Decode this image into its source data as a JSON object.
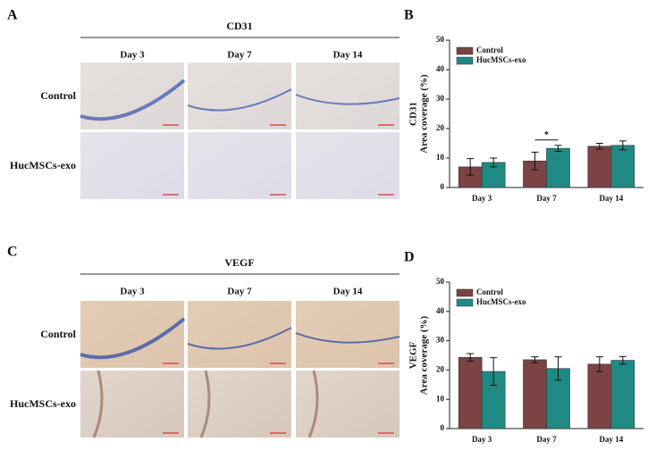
{
  "panels": [
    {
      "letter": "A",
      "title": "CD31",
      "columns": [
        "Day 3",
        "Day 7",
        "Day 14"
      ],
      "rows": [
        "Control",
        "HucMSCs-exo"
      ]
    },
    {
      "letter": "C",
      "title": "VEGF",
      "columns": [
        "Day 3",
        "Day 7",
        "Day 14"
      ],
      "rows": [
        "Control",
        "HucMSCs-exo"
      ]
    }
  ],
  "chart_data": [
    {
      "type": "bar",
      "panel_label": "B",
      "ylabel": [
        "CD31",
        "Area coverage (%)"
      ],
      "categories": [
        "Day 3",
        "Day 7",
        "Day 14"
      ],
      "series": [
        {
          "name": "Control",
          "color": "#7b4343",
          "values": [
            7,
            9,
            14
          ],
          "errors": [
            2.8,
            3,
            1
          ]
        },
        {
          "name": "HucMSCs-exo",
          "color": "#1f8a84",
          "values": [
            8.5,
            13.3,
            14.3
          ],
          "errors": [
            1.5,
            1,
            1.5
          ]
        }
      ],
      "ylim": [
        0,
        50
      ],
      "yticks": [
        0,
        10,
        20,
        30,
        40,
        50
      ],
      "annotations": [
        {
          "text": "*",
          "category": "Day 7"
        }
      ]
    },
    {
      "type": "bar",
      "panel_label": "D",
      "ylabel": [
        "VEGF",
        "Area coverage (%)"
      ],
      "categories": [
        "Day 3",
        "Day 7",
        "Day 14"
      ],
      "series": [
        {
          "name": "Control",
          "color": "#7b4343",
          "values": [
            24.3,
            23.5,
            22
          ],
          "errors": [
            1.3,
            1,
            2.5
          ]
        },
        {
          "name": "HucMSCs-exo",
          "color": "#1f8a84",
          "values": [
            19.5,
            20.5,
            23.3
          ],
          "errors": [
            4.7,
            4,
            1.3
          ]
        }
      ],
      "ylim": [
        0,
        50
      ],
      "yticks": [
        0,
        10,
        20,
        30,
        40,
        50
      ]
    }
  ]
}
